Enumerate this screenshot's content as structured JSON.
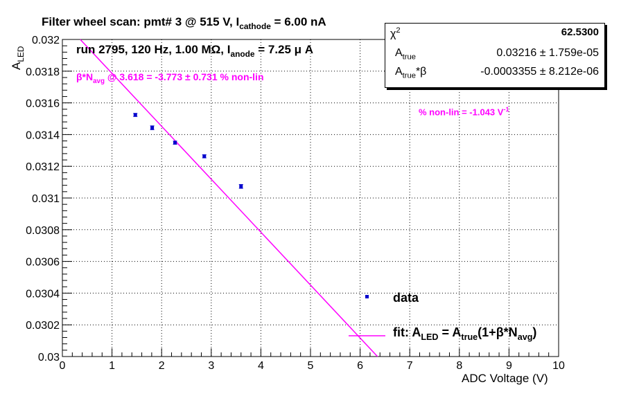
{
  "chart_data": {
    "type": "scatter",
    "title_prefix": "Filter wheel scan: pmt#   3 @   515 V, I",
    "title_sub": "cathode",
    "title_suffix": " = 6.00 nA",
    "subtitle_prefix": "run 2795, 120 Hz, 1.00 MΩ, I",
    "subtitle_sub": "anode",
    "subtitle_suffix": " = 7.25 μ A",
    "xlabel": "ADC Voltage (V)",
    "ylabel_main": "A",
    "ylabel_sub": "LED",
    "xlim": [
      0,
      10
    ],
    "ylim": [
      0.03,
      0.032
    ],
    "grid": true,
    "x_ticks": [
      "0",
      "1",
      "2",
      "3",
      "4",
      "5",
      "6",
      "7",
      "8",
      "9",
      "10"
    ],
    "y_ticks": [
      "0.03",
      "0.0302",
      "0.0304",
      "0.0306",
      "0.0308",
      "0.031",
      "0.0312",
      "0.0314",
      "0.0316",
      "0.0318",
      "0.032"
    ],
    "series": [
      {
        "name": "data",
        "x": [
          1.47,
          1.81,
          2.27,
          2.86,
          3.6
        ],
        "y": [
          0.031524,
          0.031443,
          0.031349,
          0.031263,
          0.031073
        ],
        "yerr": [
          1e-05,
          1.2e-05,
          1e-05,
          1e-05,
          1.2e-05
        ]
      }
    ],
    "fit": {
      "name": "fit",
      "x": [
        0.3,
        6.5
      ],
      "y": [
        0.03202,
        0.02995
      ]
    },
    "annotation_beta_prefix": "β*N",
    "annotation_beta_sub": "avg",
    "annotation_beta_suffix": " @ 3.618 = -3.773 ± 0.731 % non-lin",
    "annotation_nonlin_prefix": "% non-lin = -1.043 V",
    "annotation_nonlin_sup": "-1",
    "legend": {
      "data_label": "data",
      "fit_prefix": "fit: A",
      "fit_sub1": "LED",
      "fit_mid": " = A",
      "fit_sub2": "true",
      "fit_mid2": "(1+β*N",
      "fit_sub3": "avg",
      "fit_suffix": ")"
    },
    "stats": {
      "chi2_label": "χ",
      "chi2_sup": "2",
      "chi2_value": "62.5300",
      "atrue_label": "A",
      "atrue_sub": "true",
      "atrue_value": "0.03216 ± 1.759e-05",
      "beta_label": "A",
      "beta_sub": "true",
      "beta_suffix": "*β",
      "beta_value": "-0.0003355 ± 8.212e-06"
    },
    "colors": {
      "marker": "#0000cc",
      "fit_line": "#ff00ff",
      "annotation": "#ff00ff",
      "grid": "#000000"
    }
  }
}
